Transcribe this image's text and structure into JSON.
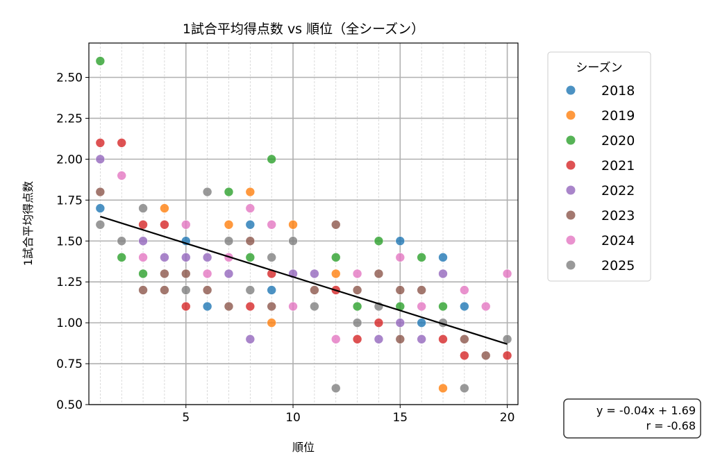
{
  "chart_data": {
    "type": "scatter",
    "title": "1試合平均得点数 vs 順位（全シーズン）",
    "xlabel": "順位",
    "ylabel": "1試合平均得点数",
    "xlim": [
      0.47,
      20.5
    ],
    "ylim": [
      0.5,
      2.71
    ],
    "xticks": [
      5,
      10,
      15,
      20
    ],
    "yticks": [
      0.5,
      0.75,
      1.0,
      1.25,
      1.5,
      1.75,
      2.0,
      2.25,
      2.5
    ],
    "ytick_labels": [
      "0.50",
      "0.75",
      "1.00",
      "1.25",
      "1.50",
      "1.75",
      "2.00",
      "2.25",
      "2.50"
    ],
    "grid": true,
    "legend": {
      "title": "シーズン",
      "placement": "outside-right-top"
    },
    "series": [
      {
        "name": "2018",
        "color": "#1f77b4",
        "points": [
          [
            1,
            1.7
          ],
          [
            5,
            1.5
          ],
          [
            6,
            1.1
          ],
          [
            8,
            1.6
          ],
          [
            9,
            1.2
          ],
          [
            15,
            1.5
          ],
          [
            16,
            1.0
          ],
          [
            17,
            1.4
          ],
          [
            18,
            1.1
          ]
        ]
      },
      {
        "name": "2019",
        "color": "#ff7f0e",
        "points": [
          [
            4,
            1.7
          ],
          [
            7,
            1.6
          ],
          [
            8,
            1.8
          ],
          [
            9,
            1.0
          ],
          [
            10,
            1.6
          ],
          [
            12,
            1.3
          ],
          [
            17,
            0.6
          ]
        ]
      },
      {
        "name": "2020",
        "color": "#2ca02c",
        "points": [
          [
            1,
            2.6
          ],
          [
            2,
            1.4
          ],
          [
            3,
            1.3
          ],
          [
            7,
            1.8
          ],
          [
            8,
            1.4
          ],
          [
            9,
            2.0
          ],
          [
            12,
            1.4
          ],
          [
            13,
            1.1
          ],
          [
            14,
            1.5
          ],
          [
            15,
            1.1
          ],
          [
            16,
            1.4
          ],
          [
            17,
            1.1
          ]
        ]
      },
      {
        "name": "2021",
        "color": "#d62728",
        "points": [
          [
            1,
            2.1
          ],
          [
            2,
            2.1
          ],
          [
            3,
            1.6
          ],
          [
            4,
            1.6
          ],
          [
            5,
            1.1
          ],
          [
            8,
            1.1
          ],
          [
            9,
            1.3
          ],
          [
            12,
            1.2
          ],
          [
            13,
            0.9
          ],
          [
            14,
            1.0
          ],
          [
            17,
            0.9
          ],
          [
            18,
            0.8
          ],
          [
            20,
            0.8
          ]
        ]
      },
      {
        "name": "2022",
        "color": "#9467bd",
        "points": [
          [
            1,
            2.0
          ],
          [
            3,
            1.5
          ],
          [
            4,
            1.4
          ],
          [
            5,
            1.4
          ],
          [
            6,
            1.4
          ],
          [
            7,
            1.3
          ],
          [
            8,
            0.9
          ],
          [
            10,
            1.3
          ],
          [
            11,
            1.3
          ],
          [
            14,
            0.9
          ],
          [
            15,
            1.0
          ],
          [
            16,
            0.9
          ],
          [
            17,
            1.3
          ]
        ]
      },
      {
        "name": "2023",
        "color": "#8c564b",
        "points": [
          [
            1,
            1.8
          ],
          [
            3,
            1.2
          ],
          [
            4,
            1.3
          ],
          [
            4,
            1.2
          ],
          [
            5,
            1.3
          ],
          [
            6,
            1.2
          ],
          [
            7,
            1.1
          ],
          [
            8,
            1.5
          ],
          [
            9,
            1.1
          ],
          [
            11,
            1.2
          ],
          [
            12,
            1.6
          ],
          [
            13,
            1.2
          ],
          [
            14,
            1.3
          ],
          [
            15,
            1.2
          ],
          [
            15,
            0.9
          ],
          [
            16,
            1.2
          ],
          [
            18,
            0.9
          ],
          [
            19,
            0.8
          ]
        ]
      },
      {
        "name": "2024",
        "color": "#e377c2",
        "points": [
          [
            2,
            1.9
          ],
          [
            3,
            1.4
          ],
          [
            5,
            1.6
          ],
          [
            6,
            1.3
          ],
          [
            7,
            1.4
          ],
          [
            8,
            1.7
          ],
          [
            9,
            1.6
          ],
          [
            10,
            1.1
          ],
          [
            12,
            0.9
          ],
          [
            13,
            1.3
          ],
          [
            15,
            1.4
          ],
          [
            16,
            1.1
          ],
          [
            18,
            1.2
          ],
          [
            19,
            1.1
          ],
          [
            20,
            1.3
          ]
        ]
      },
      {
        "name": "2025",
        "color": "#7f7f7f",
        "points": [
          [
            1,
            1.6
          ],
          [
            2,
            1.5
          ],
          [
            3,
            1.7
          ],
          [
            5,
            1.2
          ],
          [
            6,
            1.8
          ],
          [
            7,
            1.5
          ],
          [
            8,
            1.2
          ],
          [
            9,
            1.4
          ],
          [
            10,
            1.5
          ],
          [
            11,
            1.1
          ],
          [
            12,
            0.6
          ],
          [
            13,
            1.0
          ],
          [
            14,
            1.1
          ],
          [
            17,
            1.0
          ],
          [
            18,
            0.6
          ],
          [
            20,
            0.9
          ]
        ]
      }
    ],
    "regression": {
      "slope": -0.04,
      "intercept": 1.69,
      "x_range": [
        1,
        20
      ],
      "y_at_range": [
        1.65,
        0.87
      ],
      "color": "#000000"
    },
    "annotation": {
      "line1": "y = -0.04x + 1.69",
      "line2": "r = -0.68"
    }
  }
}
